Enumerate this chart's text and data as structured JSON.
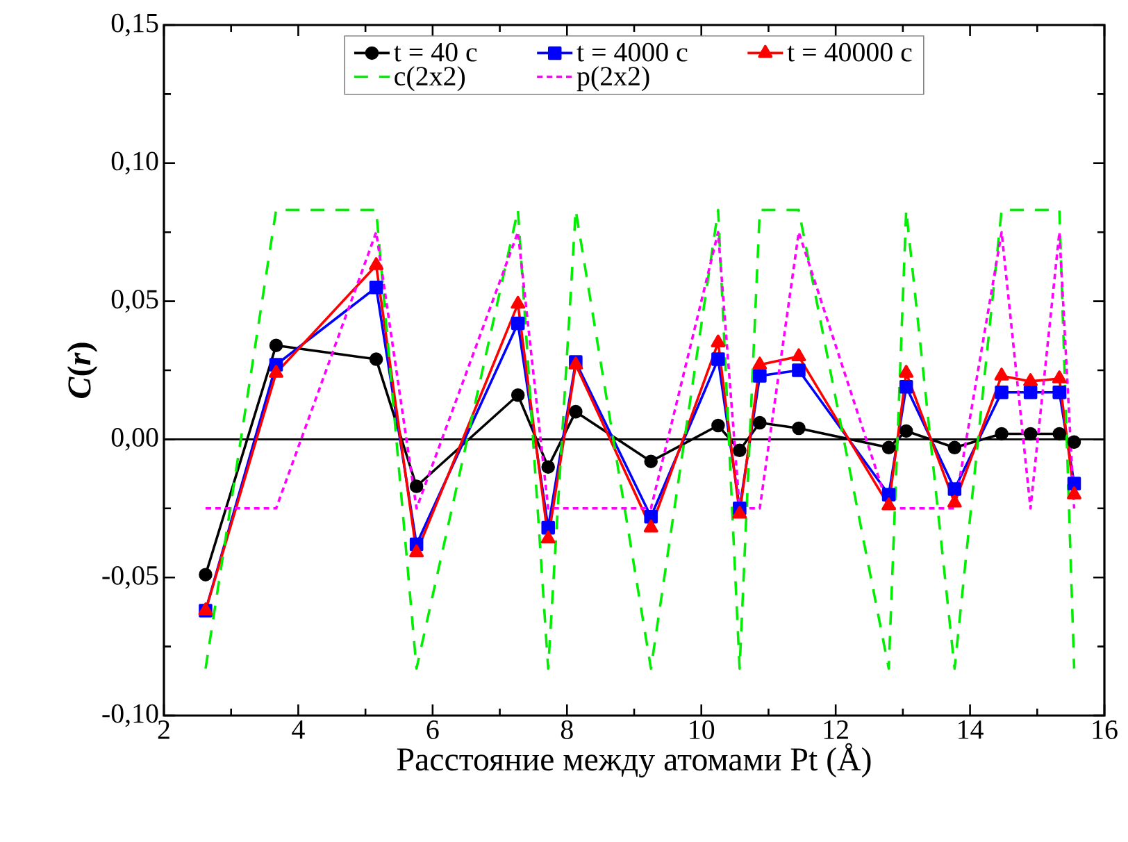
{
  "chart_data": {
    "type": "line",
    "xlabel": "Расстояние между атомами Pt (Å)",
    "ylabel": "*C*(*r*)",
    "x": [
      2.62,
      3.67,
      5.16,
      5.76,
      7.27,
      7.72,
      8.13,
      9.25,
      10.25,
      10.57,
      10.87,
      11.45,
      12.79,
      13.05,
      13.77,
      14.47,
      14.9,
      15.33,
      15.55
    ],
    "series": [
      {
        "name": "t = 40 c",
        "color": "#000000",
        "marker": "circle",
        "line_style": "solid",
        "values": [
          -0.049,
          0.034,
          0.029,
          -0.017,
          0.016,
          -0.01,
          0.01,
          -0.008,
          0.005,
          -0.004,
          0.006,
          0.004,
          -0.003,
          0.003,
          -0.003,
          0.002,
          0.002,
          0.002,
          -0.001
        ]
      },
      {
        "name": "t = 4000 c",
        "color": "#0000ff",
        "marker": "square",
        "line_style": "solid",
        "values": [
          -0.062,
          0.027,
          0.055,
          -0.038,
          0.042,
          -0.032,
          0.028,
          -0.028,
          0.029,
          -0.025,
          0.023,
          0.025,
          -0.02,
          0.019,
          -0.018,
          0.017,
          0.017,
          0.017,
          -0.016
        ]
      },
      {
        "name": "t = 40000 c",
        "color": "#ff0000",
        "marker": "triangle",
        "line_style": "solid",
        "values": [
          -0.062,
          0.024,
          0.063,
          -0.041,
          0.049,
          -0.036,
          0.027,
          -0.032,
          0.035,
          -0.027,
          0.027,
          0.03,
          -0.024,
          0.024,
          -0.023,
          0.023,
          0.021,
          0.022,
          -0.02
        ]
      },
      {
        "name": "c(2x2)",
        "color": "#00ee00",
        "marker": "none",
        "line_style": "dashed",
        "values": [
          -0.083,
          0.083,
          0.083,
          -0.083,
          0.083,
          -0.083,
          0.083,
          -0.083,
          0.083,
          -0.083,
          0.083,
          0.083,
          -0.083,
          0.083,
          -0.083,
          0.083,
          0.083,
          0.083,
          -0.083
        ]
      },
      {
        "name": "p(2x2)",
        "color": "#ff00ff",
        "marker": "none",
        "line_style": "dotted",
        "values": [
          -0.025,
          -0.025,
          0.075,
          -0.025,
          0.075,
          -0.025,
          -0.025,
          -0.025,
          0.075,
          -0.025,
          -0.025,
          0.075,
          -0.025,
          -0.025,
          -0.025,
          0.075,
          -0.025,
          0.075,
          -0.025
        ]
      }
    ],
    "xlim": [
      2,
      16
    ],
    "xticks": [
      2,
      4,
      6,
      8,
      10,
      12,
      14,
      16
    ],
    "ylim": [
      -0.1,
      0.15
    ],
    "yticks": [
      {
        "value": -0.1,
        "label": "-0,10"
      },
      {
        "value": -0.05,
        "label": "-0,05"
      },
      {
        "value": 0,
        "label": "0,00"
      },
      {
        "value": 0.05,
        "label": "0,05"
      },
      {
        "value": 0.1,
        "label": "0,10"
      },
      {
        "value": 0.15,
        "label": "0,15"
      }
    ],
    "ref_lines": [
      {
        "axis": "y",
        "value": 0,
        "color": "#000000",
        "line_style": "solid"
      }
    ],
    "legend": "top",
    "grid": false
  }
}
